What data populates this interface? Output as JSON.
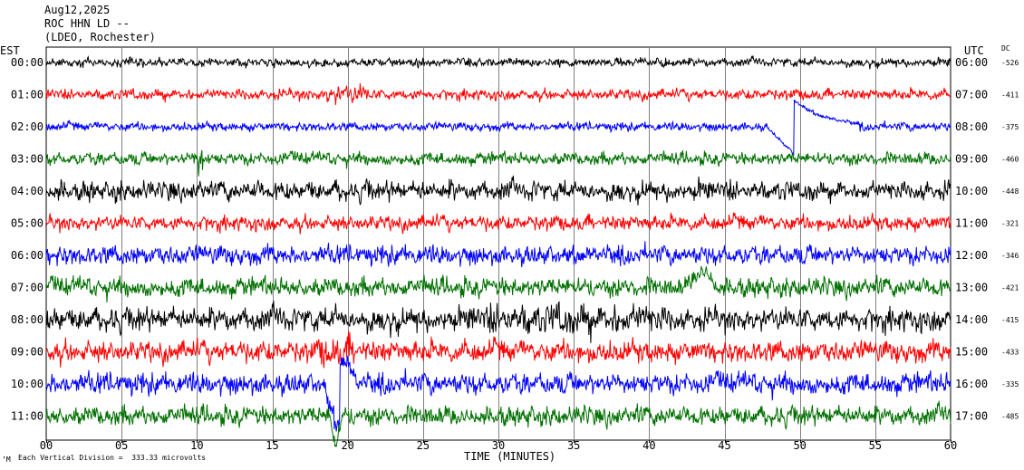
{
  "header": {
    "date": "Aug12,2025",
    "station": "ROC HHN LD --",
    "network": "(LDEO, Rochester)"
  },
  "left_zone_label": "EST",
  "right_zone_label": "UTC",
  "dc_label": "DC",
  "footer": {
    "scale_note": "Each Vertical Division =  333.33 microvolts",
    "corner_mark": "’M"
  },
  "colors": {
    "black": "#000000",
    "red": "#ff0000",
    "blue": "#0000ff",
    "green": "#007000",
    "grid": "#808080"
  },
  "chart_data": {
    "type": "line",
    "xlabel": "TIME (MINUTES)",
    "xlim": [
      0,
      60
    ],
    "x_ticks": [
      "00",
      "05",
      "10",
      "15",
      "20",
      "25",
      "30",
      "35",
      "40",
      "45",
      "50",
      "55",
      "60"
    ],
    "grid": true,
    "rows": [
      {
        "est": "00:00",
        "utc": "06:00",
        "dc": "-526",
        "color": "#000000"
      },
      {
        "est": "01:00",
        "utc": "07:00",
        "dc": "-411",
        "color": "#ff0000"
      },
      {
        "est": "02:00",
        "utc": "08:00",
        "dc": "-375",
        "color": "#0000ff"
      },
      {
        "est": "03:00",
        "utc": "09:00",
        "dc": "-460",
        "color": "#007000"
      },
      {
        "est": "04:00",
        "utc": "10:00",
        "dc": "-448",
        "color": "#000000"
      },
      {
        "est": "05:00",
        "utc": "11:00",
        "dc": "-321",
        "color": "#ff0000"
      },
      {
        "est": "06:00",
        "utc": "12:00",
        "dc": "-346",
        "color": "#0000ff"
      },
      {
        "est": "07:00",
        "utc": "13:00",
        "dc": "-421",
        "color": "#007000"
      },
      {
        "est": "08:00",
        "utc": "14:00",
        "dc": "-415",
        "color": "#000000"
      },
      {
        "est": "09:00",
        "utc": "15:00",
        "dc": "-433",
        "color": "#ff0000"
      },
      {
        "est": "10:00",
        "utc": "16:00",
        "dc": "-335",
        "color": "#0000ff"
      },
      {
        "est": "11:00",
        "utc": "17:00",
        "dc": "-485",
        "color": "#007000"
      }
    ]
  }
}
